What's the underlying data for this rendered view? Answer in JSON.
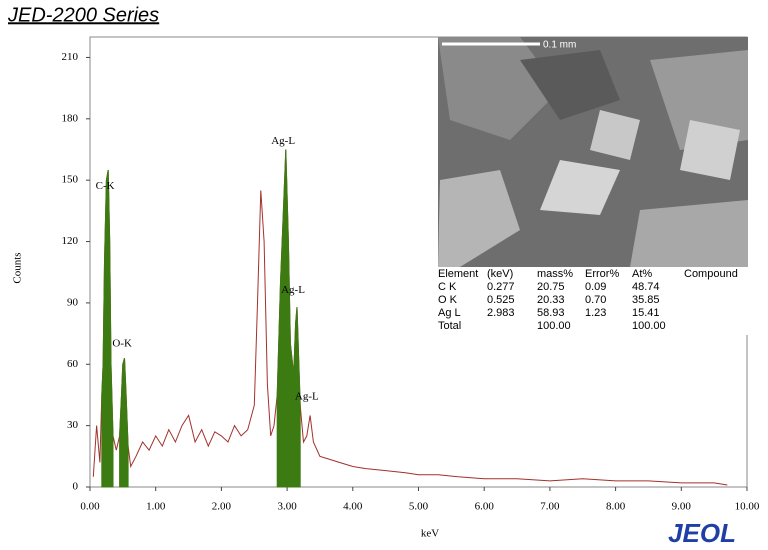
{
  "header": {
    "title": "JED-2200 Series",
    "logo": "JEOL"
  },
  "chart_data": {
    "type": "line",
    "xlabel": "keV",
    "ylabel": "Counts",
    "xlim": [
      0,
      10
    ],
    "ylim": [
      0,
      220
    ],
    "xticks": [
      {
        "value": 0,
        "label": "0.00"
      },
      {
        "value": 1,
        "label": "1.00"
      },
      {
        "value": 2,
        "label": "2.00"
      },
      {
        "value": 3,
        "label": "3.00"
      },
      {
        "value": 4,
        "label": "4.00"
      },
      {
        "value": 5,
        "label": "5.00"
      },
      {
        "value": 6,
        "label": "6.00"
      },
      {
        "value": 7,
        "label": "7.00"
      },
      {
        "value": 8,
        "label": "8.00"
      },
      {
        "value": 9,
        "label": "9.00"
      },
      {
        "value": 10,
        "label": "10.00"
      }
    ],
    "yticks": [
      0,
      30,
      60,
      90,
      120,
      150,
      180,
      210
    ],
    "series": [
      {
        "color": "#a3302c",
        "fill": false,
        "x": [
          0.05,
          0.1,
          0.15,
          0.18,
          0.2,
          0.22,
          0.25,
          0.277,
          0.3,
          0.32,
          0.35,
          0.4,
          0.45,
          0.48,
          0.5,
          0.525,
          0.55,
          0.58,
          0.62,
          0.7,
          0.8,
          0.9,
          1.0,
          1.1,
          1.2,
          1.3,
          1.4,
          1.5,
          1.6,
          1.7,
          1.8,
          1.9,
          2.0,
          2.1,
          2.2,
          2.3,
          2.4,
          2.5,
          2.55,
          2.6,
          2.65,
          2.7,
          2.75,
          2.8,
          2.85,
          2.9,
          2.95,
          2.98,
          3.02,
          3.05,
          3.1,
          3.13,
          3.15,
          3.2,
          3.25,
          3.3,
          3.35,
          3.4,
          3.5,
          3.6,
          3.8,
          4.0,
          4.2,
          4.5,
          4.8,
          5.0,
          5.3,
          5.6,
          6.0,
          6.5,
          7.0,
          7.5,
          8.0,
          8.5,
          9.0,
          9.5,
          9.7
        ],
        "values": [
          5,
          30,
          12,
          45,
          60,
          110,
          150,
          155,
          120,
          60,
          25,
          18,
          25,
          45,
          60,
          63,
          45,
          20,
          10,
          15,
          22,
          18,
          25,
          20,
          28,
          22,
          30,
          35,
          22,
          28,
          20,
          27,
          25,
          22,
          30,
          25,
          28,
          40,
          90,
          145,
          120,
          50,
          25,
          30,
          45,
          100,
          140,
          165,
          120,
          70,
          55,
          80,
          88,
          40,
          22,
          25,
          35,
          22,
          15,
          14,
          12,
          10,
          9,
          8,
          7,
          6,
          6,
          5,
          4,
          4,
          3,
          4,
          3,
          3,
          2,
          2,
          1
        ]
      },
      {
        "color": "#3c7a12",
        "fill": true,
        "x": [
          0.18,
          0.2,
          0.22,
          0.25,
          0.277,
          0.3,
          0.32,
          0.35
        ],
        "values": [
          45,
          60,
          110,
          150,
          155,
          120,
          60,
          25
        ]
      },
      {
        "color": "#3c7a12",
        "fill": true,
        "x": [
          0.45,
          0.48,
          0.5,
          0.525,
          0.55,
          0.58
        ],
        "values": [
          25,
          45,
          60,
          63,
          45,
          20
        ]
      },
      {
        "color": "#3c7a12",
        "fill": true,
        "x": [
          2.85,
          2.9,
          2.95,
          2.98,
          3.02,
          3.05,
          3.1,
          3.13,
          3.15,
          3.2
        ],
        "values": [
          45,
          100,
          140,
          165,
          120,
          70,
          55,
          80,
          88,
          40
        ]
      }
    ],
    "annotations": [
      {
        "text": "C-K",
        "x": 0.23,
        "y": 147
      },
      {
        "text": "O-K",
        "x": 0.49,
        "y": 70
      },
      {
        "text": "Ag-L",
        "x": 2.94,
        "y": 169
      },
      {
        "text": "Ag-L",
        "x": 3.09,
        "y": 96
      },
      {
        "text": "Ag-L",
        "x": 3.3,
        "y": 44
      }
    ]
  },
  "inset": {
    "scale_label": "0.1 mm",
    "table": {
      "columns": [
        "Element",
        "(keV)",
        "mass%",
        "Error%",
        "At%",
        "Compound"
      ],
      "rows": [
        [
          "C  K",
          "0.277",
          "20.75",
          "0.09",
          "48.74"
        ],
        [
          "O  K",
          "0.525",
          "20.33",
          "0.70",
          "35.85"
        ],
        [
          "Ag L",
          "2.983",
          "58.93",
          "1.23",
          "15.41"
        ]
      ],
      "total": {
        "label": "Total",
        "mass": "100.00",
        "at": "100.00"
      }
    }
  }
}
